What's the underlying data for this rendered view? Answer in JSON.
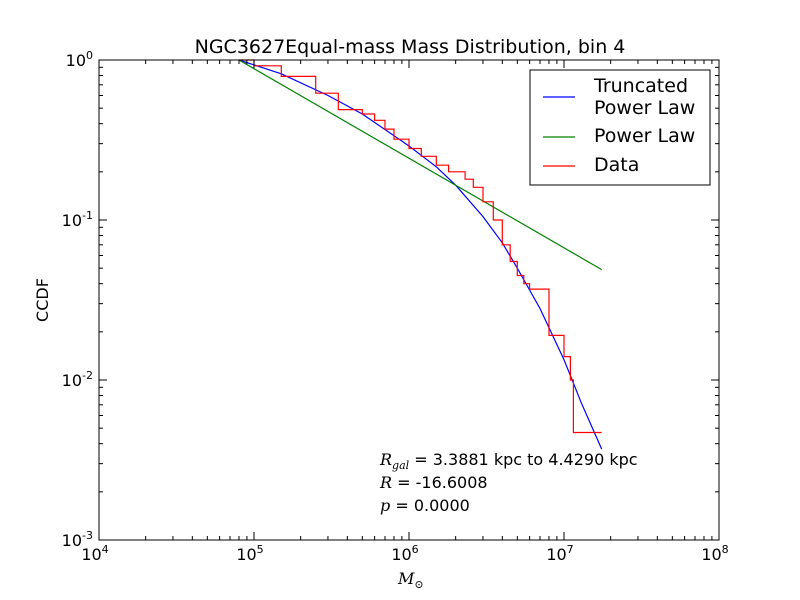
{
  "chart_data": {
    "type": "line",
    "title": "NGC3627Equal-mass Mass Distribution, bin 4",
    "xlabel": "M",
    "xlabel_subscript": "⊙",
    "ylabel": "CCDF",
    "xscale": "log",
    "yscale": "log",
    "xlim": [
      10000,
      100000000
    ],
    "ylim": [
      0.001,
      1
    ],
    "x_ticks": [
      {
        "base": "10",
        "exp": "4",
        "value": 10000
      },
      {
        "base": "10",
        "exp": "5",
        "value": 100000
      },
      {
        "base": "10",
        "exp": "6",
        "value": 1000000
      },
      {
        "base": "10",
        "exp": "7",
        "value": 10000000
      },
      {
        "base": "10",
        "exp": "8",
        "value": 100000000
      }
    ],
    "y_ticks": [
      {
        "base": "10",
        "exp": "-3",
        "value": 0.001
      },
      {
        "base": "10",
        "exp": "-2",
        "value": 0.01
      },
      {
        "base": "10",
        "exp": "-1",
        "value": 0.1
      },
      {
        "base": "10",
        "exp": "0",
        "value": 1
      }
    ],
    "grid": false,
    "legend_position": "top-right",
    "series": [
      {
        "name": "Truncated Power Law",
        "legend_lines": [
          "Truncated",
          "Power Law"
        ],
        "color": "#0000ff",
        "style": "line",
        "x": [
          80000,
          150000,
          300000,
          500000,
          1000000,
          1500000,
          2000000,
          3000000,
          4000000,
          5000000,
          7000000,
          10000000,
          13000000,
          17500000
        ],
        "y": [
          1.0,
          0.82,
          0.6,
          0.46,
          0.29,
          0.215,
          0.165,
          0.105,
          0.072,
          0.05,
          0.028,
          0.0134,
          0.0071,
          0.0037
        ]
      },
      {
        "name": "Power Law",
        "color": "#008000",
        "style": "line",
        "x": [
          80000,
          17500000
        ],
        "y": [
          1.0,
          0.049
        ]
      },
      {
        "name": "Data",
        "color": "#ff0000",
        "style": "step",
        "x": [
          80000,
          100000,
          150000,
          250000,
          350000,
          500000,
          600000,
          700000,
          800000,
          1000000,
          1200000,
          1500000,
          1800000,
          2300000,
          2600000,
          3000000,
          3500000,
          4000000,
          4500000,
          5000000,
          5500000,
          6000000,
          7000000,
          7800000,
          8000000,
          9000000,
          10000000,
          11000000,
          11500000,
          17500000
        ],
        "y": [
          1.0,
          0.92,
          0.79,
          0.62,
          0.49,
          0.46,
          0.42,
          0.37,
          0.32,
          0.28,
          0.25,
          0.22,
          0.2,
          0.18,
          0.16,
          0.13,
          0.1,
          0.07,
          0.055,
          0.045,
          0.04,
          0.037,
          0.037,
          0.037,
          0.019,
          0.019,
          0.014,
          0.01,
          0.0047,
          0.0047
        ]
      }
    ],
    "annotations": [
      {
        "symbol": "R",
        "subscript": "gal",
        "text": " = 3.3881 kpc to 4.4290 kpc"
      },
      {
        "symbol": "R",
        "subscript": "",
        "text": " = -16.6008"
      },
      {
        "symbol": "p",
        "subscript": "",
        "text": " = 0.0000"
      }
    ]
  }
}
